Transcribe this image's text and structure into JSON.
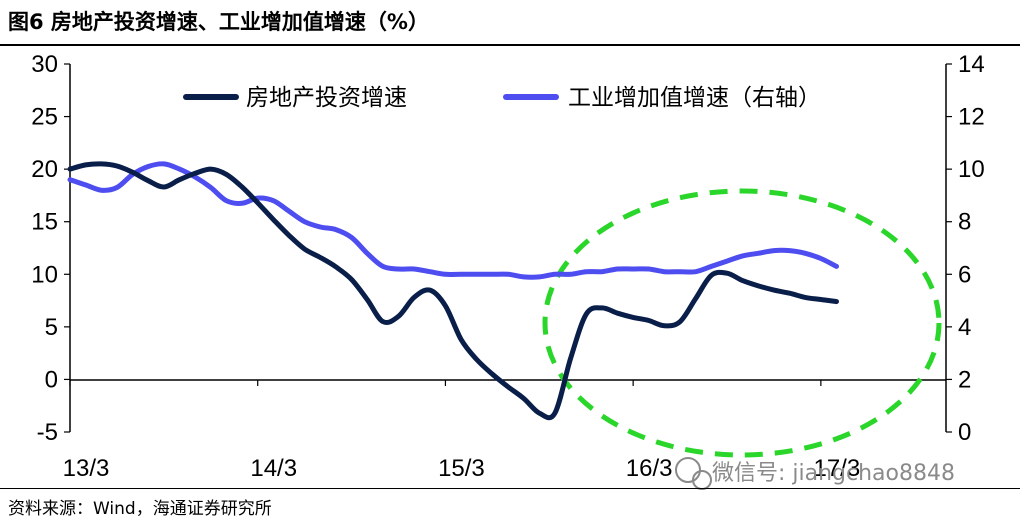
{
  "title": "图6  房地产投资增速、工业增加值增速（%）",
  "source": "资料来源：Wind，海通证券研究所",
  "watermark": "微信号: jiangchao8848",
  "chart_data": {
    "type": "line",
    "left_axis": {
      "min": -5,
      "max": 30,
      "ticks": [
        "-5",
        "0",
        "5",
        "10",
        "15",
        "20",
        "25",
        "30"
      ]
    },
    "right_axis": {
      "min": 0,
      "max": 14,
      "ticks": [
        "0",
        "2",
        "4",
        "6",
        "8",
        "10",
        "12",
        "14"
      ]
    },
    "x_axis": {
      "start": 0,
      "end": 56,
      "labels": [
        {
          "label": "13/3",
          "i": 0
        },
        {
          "label": "14/3",
          "i": 12
        },
        {
          "label": "15/3",
          "i": 24
        },
        {
          "label": "16/3",
          "i": 36
        },
        {
          "label": "17/3",
          "i": 48
        }
      ]
    },
    "legend_position": "top",
    "series": [
      {
        "name": "房地产投资增速",
        "axis": "left",
        "color": "#0a1e4a",
        "values": [
          20.0,
          20.4,
          20.5,
          20.3,
          19.7,
          18.9,
          18.3,
          19.0,
          19.6,
          20.0,
          19.5,
          18.3,
          16.8,
          15.2,
          13.7,
          12.4,
          11.6,
          10.7,
          9.5,
          7.6,
          5.5,
          6.0,
          7.8,
          8.5,
          7.0,
          3.8,
          1.9,
          0.5,
          -0.7,
          -1.8,
          -3.2,
          -3.2,
          2.0,
          6.2,
          6.8,
          6.3,
          5.9,
          5.6,
          5.1,
          5.5,
          7.7,
          9.9,
          10.1,
          9.4,
          8.9,
          8.5,
          8.2,
          7.8,
          7.6,
          7.4
        ]
      },
      {
        "name": "工业增加值增速（右轴）",
        "axis": "right",
        "color": "#4d4df0",
        "values": [
          9.6,
          9.4,
          9.2,
          9.3,
          9.8,
          10.1,
          10.2,
          10.0,
          9.7,
          9.3,
          8.8,
          8.7,
          8.9,
          8.8,
          8.4,
          8.0,
          7.8,
          7.7,
          7.4,
          6.8,
          6.3,
          6.2,
          6.2,
          6.1,
          6.0,
          6.0,
          6.0,
          6.0,
          6.0,
          5.9,
          5.9,
          6.0,
          6.0,
          6.1,
          6.1,
          6.2,
          6.2,
          6.2,
          6.1,
          6.1,
          6.1,
          6.3,
          6.5,
          6.7,
          6.8,
          6.9,
          6.9,
          6.8,
          6.6,
          6.3
        ]
      }
    ],
    "annotation": {
      "shape": "ellipse",
      "style": "dashed",
      "color": "#2ad62a"
    }
  }
}
